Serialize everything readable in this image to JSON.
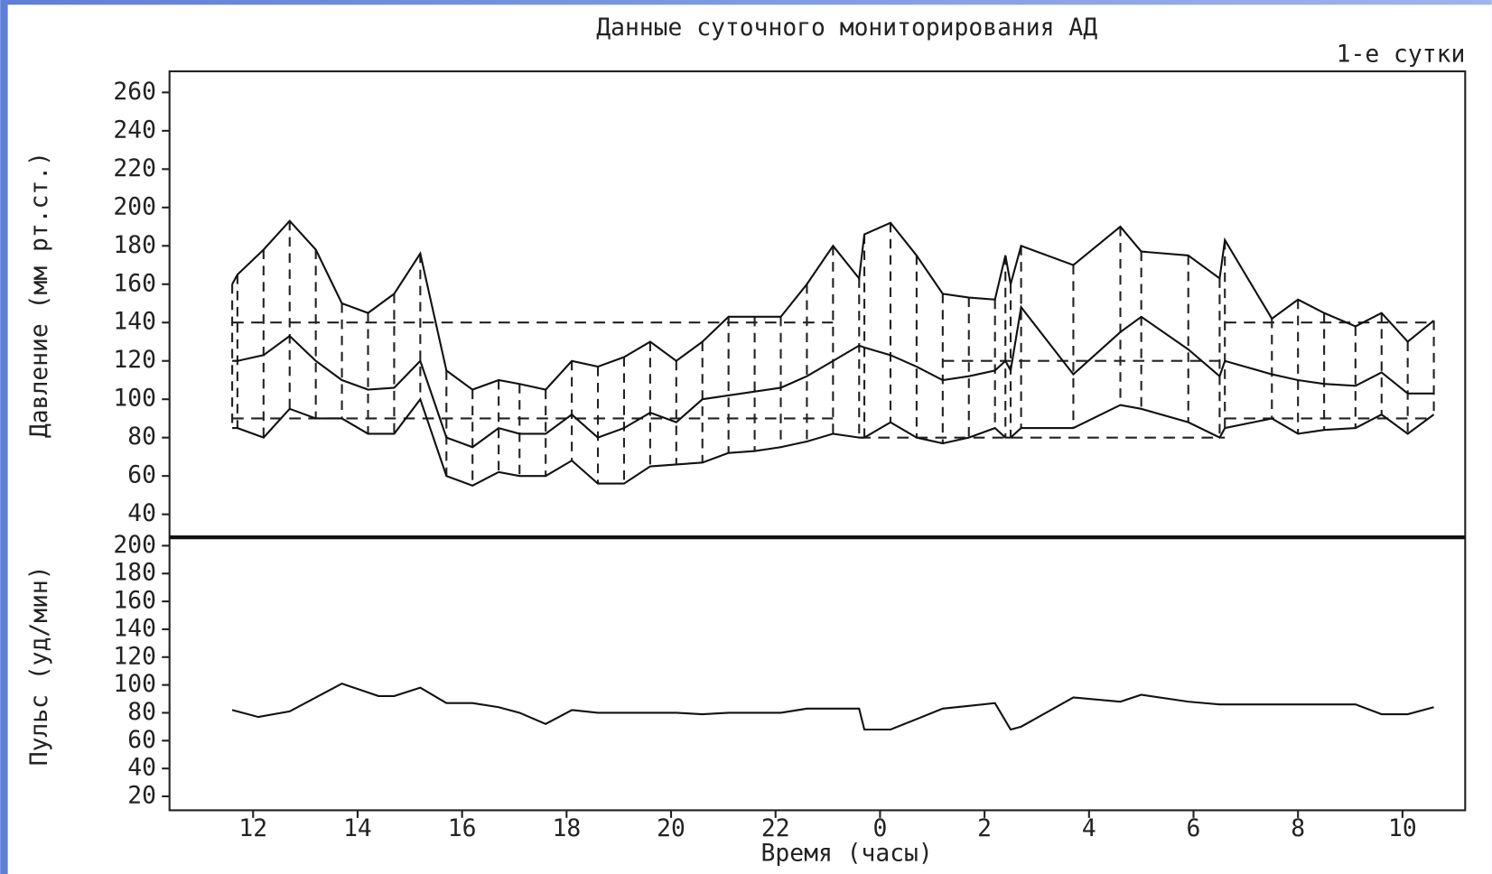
{
  "chart_data": [
    {
      "type": "line",
      "title": "Данные суточного мониторирования АД",
      "subtitle": "1-е сутки",
      "y_label": "Давление (мм рт.ст.)",
      "x": [
        11.6,
        11.7,
        12.2,
        12.7,
        13.2,
        13.7,
        14.2,
        14.7,
        15.2,
        15.7,
        16.2,
        16.7,
        17.1,
        17.6,
        18.1,
        18.6,
        19.1,
        19.6,
        20.1,
        20.6,
        21.1,
        21.6,
        22.1,
        22.6,
        23.1,
        23.6,
        23.7,
        24.2,
        24.7,
        25.2,
        25.7,
        26.2,
        26.4,
        26.5,
        26.7,
        27.7,
        28.6,
        29.0,
        29.9,
        30.5,
        30.6,
        31.5,
        32.0,
        32.5,
        33.1,
        33.6,
        34.1,
        34.6
      ],
      "series": [
        {
          "color": "#111111",
          "values": [
            160,
            165,
            178,
            193,
            178,
            150,
            145,
            155,
            176,
            115,
            105,
            110,
            108,
            105,
            120,
            117,
            122,
            130,
            120,
            130,
            143,
            143,
            143,
            160,
            180,
            163,
            186,
            192,
            175,
            155,
            153,
            152,
            175,
            160,
            180,
            170,
            190,
            177,
            175,
            163,
            183,
            142,
            152,
            145,
            138,
            145,
            130,
            141
          ]
        },
        {
          "color": "#111111",
          "values": [
            120,
            120,
            123,
            133,
            120,
            110,
            105,
            106,
            120,
            80,
            75,
            85,
            82,
            82,
            92,
            80,
            85,
            93,
            88,
            100,
            102,
            104,
            106,
            112,
            120,
            128,
            127,
            123,
            117,
            110,
            112,
            115,
            120,
            115,
            148,
            113,
            135,
            143,
            126,
            112,
            120,
            113,
            110,
            108,
            107,
            114,
            103,
            103
          ]
        },
        {
          "color": "#111111",
          "values": [
            85,
            85,
            80,
            95,
            90,
            90,
            82,
            82,
            100,
            60,
            55,
            62,
            60,
            60,
            68,
            56,
            56,
            65,
            66,
            67,
            72,
            73,
            75,
            78,
            82,
            80,
            80,
            88,
            80,
            77,
            80,
            85,
            80,
            80,
            85,
            85,
            97,
            95,
            88,
            80,
            85,
            90,
            82,
            84,
            85,
            92,
            82,
            92
          ]
        }
      ],
      "drop_lines": true,
      "thresholds": [
        {
          "y": 140,
          "x": [
            11.6,
            23.1
          ]
        },
        {
          "y": 90,
          "x": [
            11.6,
            23.1
          ]
        },
        {
          "y": 120,
          "x": [
            25.2,
            30.6
          ]
        },
        {
          "y": 80,
          "x": [
            23.6,
            30.6
          ]
        },
        {
          "y": 140,
          "x": [
            30.6,
            34.6
          ]
        },
        {
          "y": 90,
          "x": [
            30.6,
            34.6
          ]
        }
      ],
      "xlim": [
        10.4,
        35.2
      ],
      "ylim": [
        28,
        271
      ],
      "yticks": [
        40,
        60,
        80,
        100,
        120,
        140,
        160,
        180,
        200,
        220,
        240,
        260
      ]
    },
    {
      "type": "line",
      "y_label": "Пульс (уд/мин)",
      "x_label": "Время (часы)",
      "color": "#111111",
      "x": [
        11.6,
        12.1,
        12.7,
        13.7,
        14.4,
        14.7,
        15.2,
        15.7,
        16.2,
        16.7,
        17.1,
        17.6,
        18.1,
        18.6,
        20.1,
        20.6,
        21.1,
        22.1,
        22.6,
        23.6,
        23.7,
        24.2,
        25.2,
        25.7,
        26.2,
        26.5,
        26.7,
        27.7,
        28.6,
        29.0,
        29.9,
        30.5,
        31.5,
        33.1,
        33.6,
        34.1,
        34.6
      ],
      "values": [
        82,
        77,
        81,
        101,
        92,
        92,
        98,
        87,
        87,
        84,
        80,
        72,
        82,
        80,
        80,
        79,
        80,
        80,
        83,
        83,
        68,
        68,
        83,
        85,
        87,
        68,
        70,
        91,
        88,
        93,
        88,
        86,
        86,
        86,
        79,
        79,
        84
      ],
      "xlim": [
        10.4,
        35.2
      ],
      "ylim": [
        10,
        206
      ],
      "yticks": [
        20,
        40,
        60,
        80,
        100,
        120,
        140,
        160,
        180,
        200
      ],
      "xticks": [
        12,
        14,
        16,
        18,
        20,
        22,
        {
          "value": 24,
          "label": "0"
        },
        {
          "value": 26,
          "label": "2"
        },
        {
          "value": 28,
          "label": "4"
        },
        {
          "value": 30,
          "label": "6"
        },
        {
          "value": 32,
          "label": "8"
        },
        {
          "value": 34,
          "label": "10"
        }
      ]
    }
  ]
}
